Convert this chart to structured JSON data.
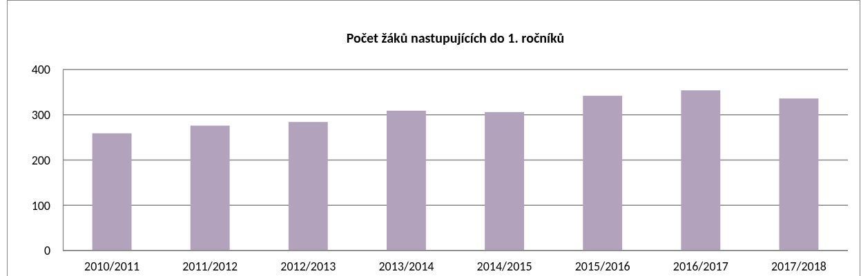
{
  "chart_data": {
    "type": "bar",
    "title": "Počet žáků nastupujících do 1. ročníků",
    "categories": [
      "2010/2011",
      "2011/2012",
      "2012/2013",
      "2013/2014",
      "2014/2015",
      "2015/2016",
      "2016/2017",
      "2017/2018"
    ],
    "values": [
      259,
      276,
      284,
      309,
      306,
      342,
      354,
      336
    ],
    "color": "#b3a2bb",
    "ylim": [
      0,
      400
    ],
    "yticks": [
      0,
      100,
      200,
      300,
      400
    ],
    "grid": "y"
  }
}
